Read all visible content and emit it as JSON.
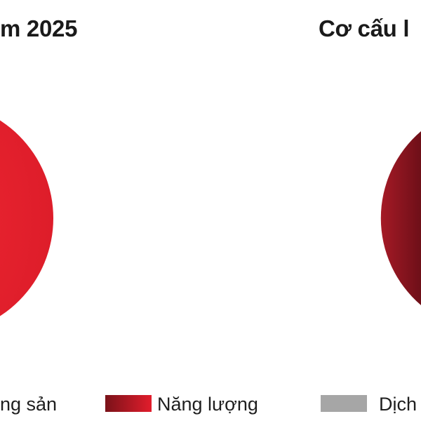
{
  "chart_data": [
    {
      "type": "pie",
      "title": "m 2025",
      "slices": [
        {
          "category": "Năng lượng",
          "color": "#e21d2c"
        }
      ]
    },
    {
      "type": "pie",
      "title": "Cơ cấu l",
      "slices": [
        {
          "category": "Năng lượng",
          "color": "#8b1420"
        }
      ]
    }
  ],
  "legend": {
    "items": [
      {
        "label": "ng sản",
        "color": "#e21d2c"
      },
      {
        "label": "Năng lượng",
        "color_from": "#7a1219",
        "color_to": "#e21d2c"
      },
      {
        "label": "Dịch",
        "color": "#a6a6a6"
      }
    ]
  }
}
